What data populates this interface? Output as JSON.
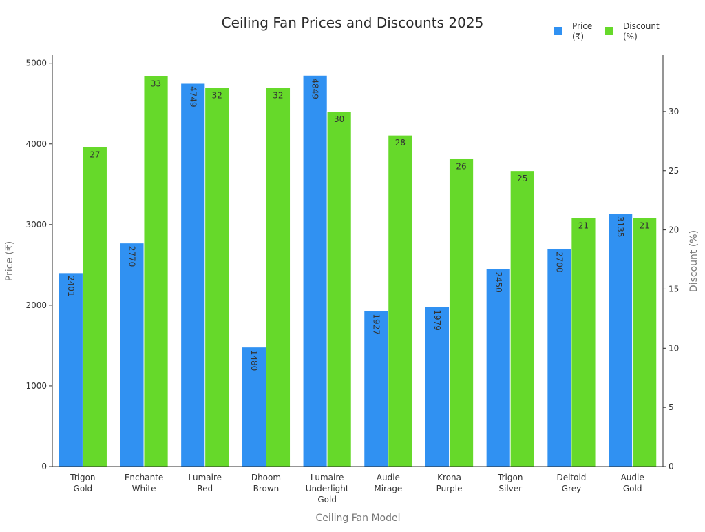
{
  "chart_data": {
    "type": "bar",
    "title": "Ceiling Fan Prices and Discounts 2025",
    "xlabel": "Ceiling Fan Model",
    "ylabel_left": "Price (₹)",
    "ylabel_right": "Discount (%)",
    "categories": [
      [
        "Trigon",
        "Gold"
      ],
      [
        "Enchante",
        "White"
      ],
      [
        "Lumaire",
        "Red"
      ],
      [
        "Dhoom",
        "Brown"
      ],
      [
        "Lumaire",
        "Underlight",
        "Gold"
      ],
      [
        "Audie",
        "Mirage"
      ],
      [
        "Krona",
        "Purple"
      ],
      [
        "Trigon",
        "Silver"
      ],
      [
        "Deltoid",
        "Grey"
      ],
      [
        "Audie",
        "Gold"
      ]
    ],
    "series": [
      {
        "name": "Price (₹)",
        "legend_lines": [
          "Price",
          "(₹)"
        ],
        "axis": "left",
        "color": "#3091f2",
        "values": [
          2401,
          2770,
          4749,
          1480,
          4849,
          1927,
          1979,
          2450,
          2700,
          3135
        ]
      },
      {
        "name": "Discount (%)",
        "legend_lines": [
          "Discount",
          "(%)"
        ],
        "axis": "right",
        "color": "#66d92a",
        "values": [
          27,
          33,
          32,
          32,
          30,
          28,
          26,
          25,
          21,
          21
        ]
      }
    ],
    "ylim_left": [
      0,
      5100
    ],
    "yticks_left": [
      0,
      1000,
      2000,
      3000,
      4000,
      5000
    ],
    "ylim_right": [
      0,
      34.77
    ],
    "yticks_right": [
      0,
      5,
      10,
      15,
      20,
      25,
      30
    ],
    "grid": false,
    "legend_position": "top-right"
  }
}
